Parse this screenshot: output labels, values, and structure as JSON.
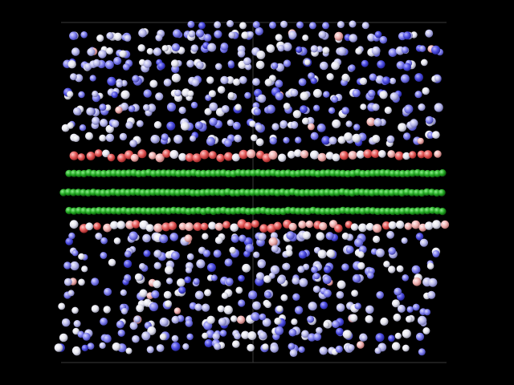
{
  "scene": {
    "background": "#000000",
    "box_line_color": "#3a3a3a",
    "palette": {
      "white": "#f2f2f6",
      "light_blue": "#c8c8ee",
      "blue": "#8080ee",
      "deep_blue": "#5a5ae0",
      "pink": "#f0b0b0",
      "red": "#e05858",
      "green": "#1fa51f",
      "green_highlight": "#6fe06f"
    },
    "layers": {
      "upper_region": "spheres-white-blue",
      "upper_interface": "spheres-red-pink",
      "membrane_rows": 3,
      "lower_interface": "spheres-red-pink",
      "lower_region": "spheres-white-blue"
    }
  }
}
